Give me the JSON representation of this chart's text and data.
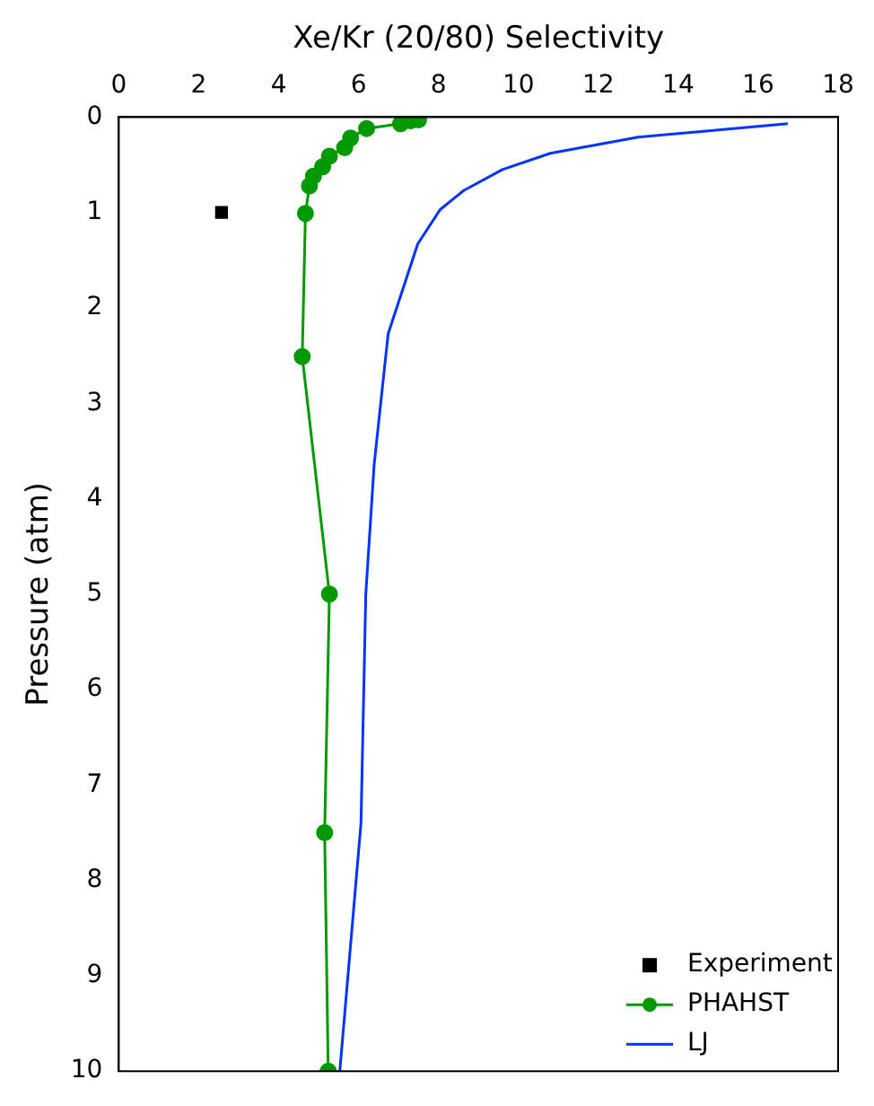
{
  "chart_data": {
    "type": "line",
    "xlabel": "Xe/Kr (20/80) Selectivity",
    "ylabel": "Pressure (atm)",
    "xlim": [
      0,
      18
    ],
    "xticks": [
      0,
      2,
      4,
      6,
      8,
      10,
      12,
      14,
      16,
      18
    ],
    "ylim": [
      10,
      0
    ],
    "yticks": [
      0,
      1,
      2,
      3,
      4,
      5,
      6,
      7,
      8,
      9,
      10
    ],
    "grid": false,
    "legend": "bottom right",
    "series": [
      {
        "name": "Experiment",
        "type": "scatter",
        "color": "#000000",
        "marker": "square",
        "x": [
          2.57
        ],
        "values": [
          1.0
        ]
      },
      {
        "name": "PHAHST",
        "color": "#009900",
        "marker": "circle",
        "x": [
          7.5,
          7.3,
          7.05,
          6.2,
          5.8,
          5.65,
          5.27,
          5.1,
          4.87,
          4.77,
          4.67,
          4.59,
          5.27,
          5.15,
          5.24
        ],
        "values": [
          0.03,
          0.04,
          0.07,
          0.12,
          0.22,
          0.32,
          0.41,
          0.52,
          0.62,
          0.72,
          1.01,
          2.51,
          5.0,
          7.5,
          10.0
        ]
      },
      {
        "name": "LJ",
        "color": "#0033ff",
        "marker": "none",
        "x": [
          16.74,
          13.0,
          10.8,
          9.6,
          8.63,
          8.04,
          7.48,
          6.74,
          6.39,
          6.18,
          6.06,
          5.53
        ],
        "values": [
          0.07,
          0.21,
          0.38,
          0.55,
          0.77,
          0.97,
          1.33,
          2.27,
          3.64,
          5.0,
          7.4,
          10.0
        ]
      }
    ]
  }
}
